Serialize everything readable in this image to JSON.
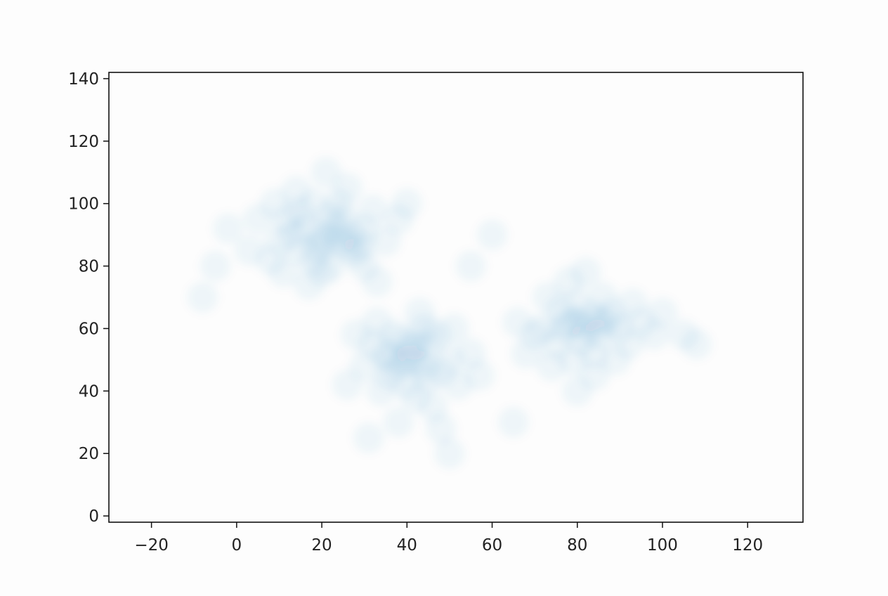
{
  "chart_data": {
    "type": "scatter",
    "title": "",
    "xlabel": "",
    "ylabel": "",
    "xlim": [
      -30,
      133
    ],
    "ylim": [
      -2,
      142
    ],
    "x_ticks": [
      "−20",
      "0",
      "20",
      "40",
      "60",
      "80",
      "100",
      "120"
    ],
    "x_tick_values": [
      -20,
      0,
      20,
      40,
      60,
      80,
      100,
      120
    ],
    "y_ticks": [
      "0",
      "20",
      "40",
      "60",
      "80",
      "100",
      "120",
      "140"
    ],
    "y_tick_values": [
      0,
      20,
      40,
      60,
      80,
      100,
      120,
      140
    ],
    "grid": false,
    "marker_color": "#1f77b4",
    "marker_alpha": "very low (dense overlapping)",
    "series": [
      {
        "points": [
          [
            20,
            90
          ],
          [
            15,
            85
          ],
          [
            25,
            95
          ],
          [
            10,
            88
          ],
          [
            22,
            80
          ],
          [
            30,
            92
          ],
          [
            18,
            100
          ],
          [
            12,
            95
          ],
          [
            28,
            84
          ],
          [
            24,
            88
          ],
          [
            16,
            92
          ],
          [
            20,
            78
          ],
          [
            8,
            82
          ],
          [
            32,
            98
          ],
          [
            26,
            105
          ],
          [
            14,
            104
          ],
          [
            5,
            95
          ],
          [
            35,
            88
          ],
          [
            22,
            96
          ],
          [
            19,
            86
          ],
          [
            27,
            90
          ],
          [
            11,
            78
          ],
          [
            3,
            85
          ],
          [
            38,
            95
          ],
          [
            21,
            110
          ],
          [
            30,
            80
          ],
          [
            17,
            74
          ],
          [
            24,
            100
          ],
          [
            13,
            90
          ],
          [
            29,
            87
          ],
          [
            -2,
            92
          ],
          [
            -5,
            80
          ],
          [
            40,
            100
          ],
          [
            33,
            75
          ],
          [
            9,
            100
          ],
          [
            23,
            92
          ],
          [
            18,
            82
          ],
          [
            26,
            86
          ],
          [
            15,
            97
          ],
          [
            21,
            88
          ],
          [
            42,
            50
          ],
          [
            38,
            48
          ],
          [
            45,
            55
          ],
          [
            35,
            52
          ],
          [
            48,
            46
          ],
          [
            40,
            42
          ],
          [
            44,
            60
          ],
          [
            32,
            55
          ],
          [
            50,
            50
          ],
          [
            36,
            45
          ],
          [
            42,
            38
          ],
          [
            47,
            58
          ],
          [
            30,
            48
          ],
          [
            52,
            42
          ],
          [
            39,
            56
          ],
          [
            44,
            48
          ],
          [
            41,
            53
          ],
          [
            34,
            40
          ],
          [
            46,
            35
          ],
          [
            28,
            58
          ],
          [
            55,
            52
          ],
          [
            38,
            30
          ],
          [
            48,
            28
          ],
          [
            33,
            62
          ],
          [
            43,
            65
          ],
          [
            57,
            45
          ],
          [
            26,
            42
          ],
          [
            40,
            50
          ],
          [
            37,
            58
          ],
          [
            45,
            44
          ],
          [
            31,
            25
          ],
          [
            51,
            60
          ],
          [
            42,
            55
          ],
          [
            36,
            50
          ],
          [
            82,
            60
          ],
          [
            78,
            62
          ],
          [
            85,
            58
          ],
          [
            75,
            55
          ],
          [
            88,
            65
          ],
          [
            80,
            68
          ],
          [
            84,
            52
          ],
          [
            72,
            60
          ],
          [
            90,
            60
          ],
          [
            79,
            50
          ],
          [
            86,
            70
          ],
          [
            76,
            66
          ],
          [
            92,
            55
          ],
          [
            83,
            64
          ],
          [
            74,
            48
          ],
          [
            81,
            56
          ],
          [
            87,
            62
          ],
          [
            70,
            58
          ],
          [
            95,
            62
          ],
          [
            78,
            75
          ],
          [
            84,
            45
          ],
          [
            66,
            62
          ],
          [
            98,
            58
          ],
          [
            80,
            40
          ],
          [
            89,
            50
          ],
          [
            73,
            70
          ],
          [
            100,
            65
          ],
          [
            82,
            78
          ],
          [
            68,
            52
          ],
          [
            77,
            60
          ],
          [
            85,
            62
          ],
          [
            105,
            58
          ],
          [
            93,
            68
          ],
          [
            80,
            62
          ],
          [
            60,
            90
          ],
          [
            55,
            80
          ],
          [
            -8,
            70
          ],
          [
            65,
            30
          ],
          [
            108,
            55
          ],
          [
            50,
            20
          ]
        ]
      }
    ]
  }
}
